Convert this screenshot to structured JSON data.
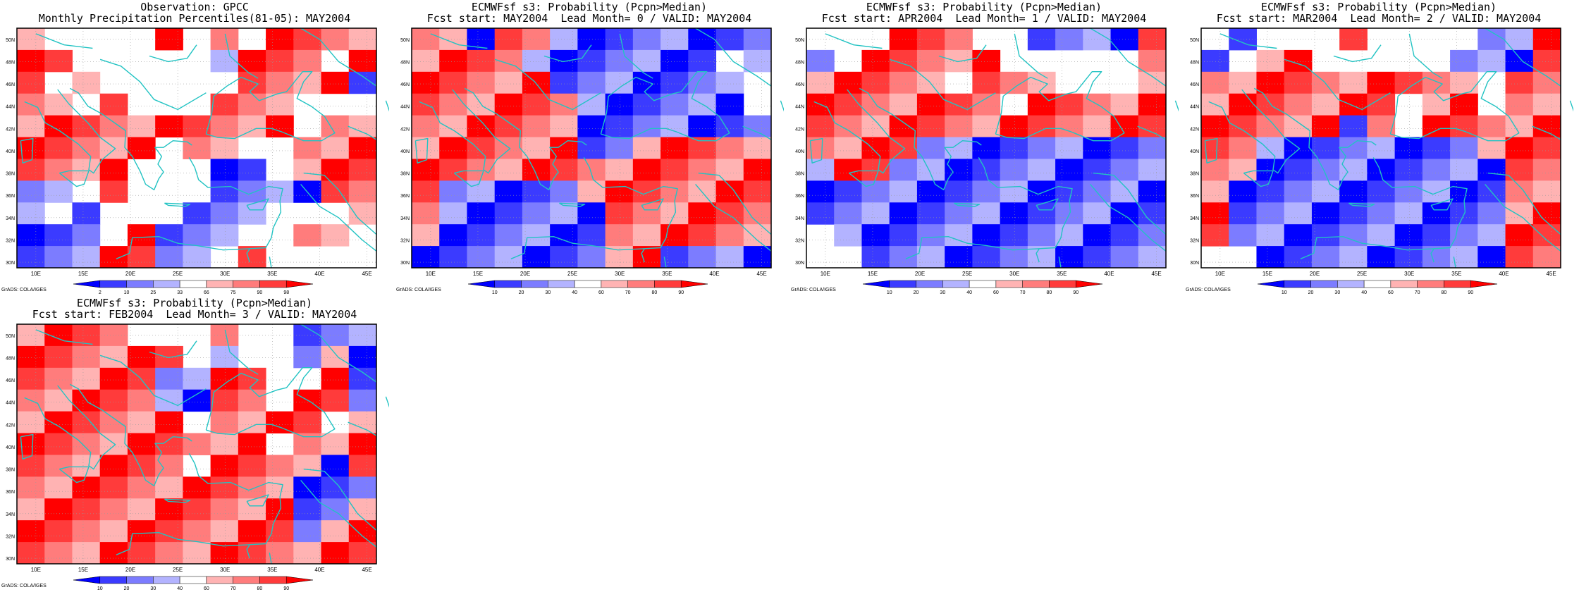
{
  "grads_label": "GrADS: COLA/IGES",
  "coast_color": "#22c3c3",
  "x_ticks": [
    "10E",
    "15E",
    "20E",
    "25E",
    "30E",
    "35E",
    "40E",
    "45E"
  ],
  "y_ticks": [
    "30N",
    "32N",
    "34N",
    "36N",
    "38N",
    "40N",
    "42N",
    "44N",
    "46N",
    "48N",
    "50N"
  ],
  "colorbars": {
    "percentile": {
      "labels": [
        "2",
        "10",
        "25",
        "33",
        "66",
        "75",
        "90",
        "98"
      ],
      "colors": [
        "#0000ff",
        "#3b3bff",
        "#7c7cff",
        "#b3b3ff",
        "#ffffff",
        "#ffb3b3",
        "#ff7c7c",
        "#ff3b3b",
        "#ff0000"
      ]
    },
    "probability": {
      "labels": [
        "10",
        "20",
        "30",
        "40",
        "60",
        "70",
        "80",
        "90"
      ],
      "colors": [
        "#0000ff",
        "#3b3bff",
        "#7c7cff",
        "#b3b3ff",
        "#ffffff",
        "#ffb3b3",
        "#ff7c7c",
        "#ff3b3b",
        "#ff0000"
      ]
    }
  },
  "panels": [
    {
      "title_line1": "Observation: GPCC",
      "title_line2": "Monthly Precipitation Percentiles(81-05): MAY2004",
      "scale": "percentile",
      "grid": [
        "R0000R0R0RRRR",
        "RR00000BRRR0R",
        "R0R00000RRRRB",
        "RR0R000RRR000",
        "RRRRRRRRRR0RR",
        "RRRRR0RR00RRR",
        "RRRR000BB0RRR",
        "BB0R000BBBBRR",
        "B0B000BBB000R",
        "BBB0RBBB00RR0",
        "BBBRRBB0R0000"
      ]
    },
    {
      "title_line1": "ECMWFsf s3: Probability (Pcpn>Median)",
      "title_line2": "Fcst start: MAY2004  Lead Month= 0 / VALID: MAY2004",
      "scale": "probability",
      "grid": [
        "RRBRRBBBBBBBB",
        "RRRRBBBBBBB0B",
        "RRRRRBBBBBBB0",
        "RRRRRRBBBBBB0",
        "RRRRRRBBBBBBB",
        "RRRRRRBBRRRRR",
        "RRRRRRRRRRRRR",
        "RBBBBBRRRRRRR",
        "RBBBBBBRRRRRR",
        "RBBBBBBRRRRRR",
        "BBBBBBBRRBBBB"
      ]
    },
    {
      "title_line1": "ECMWFsf s3: Probability (Pcpn>Median)",
      "title_line2": "Fcst start: APR2004  Lead Month= 1 / VALID: MAY2004",
      "scale": "probability",
      "grid": [
        "000RRR00BBBBR",
        "B0RRRRR00000R",
        "RRRRR0RRR000R",
        "RRRRRRR0RRRRR",
        "RRRRRRRRRRRRR",
        "RRRRBBBBBBBBB",
        "BRRBBBBBBBBBB",
        "BBBBBBBBBBBBB",
        "BBBBBBBBBBBBB",
        "0BBBBBBBBBBBB",
        "00BBBBBBBBBBB"
      ]
    },
    {
      "title_line1": "ECMWFsf s3: Probability (Pcpn>Median)",
      "title_line2": "Fcst start: MAR2004  Lead Month= 2 / VALID: MAY2004",
      "scale": "probability",
      "grid": [
        "0B000R0000BBR",
        "B0RR00000BBBR",
        "RRRRRRRRRR0RR",
        "RRRRRRR0RR0RR",
        "RRRRRBR0RRRRR",
        "RRBBBBBBBBRRR",
        "RRBBBBBBBBBRR",
        "RBBBBBBBBBBRR",
        "RBBBBBBBBBBRR",
        "RBBBBBBBBBBRR",
        "00BBBBBBBBBRR"
      ]
    },
    {
      "title_line1": "ECMWFsf s3: Probability (Pcpn>Median)",
      "title_line2": "Fcst start: FEB2004  Lead Month= 3 / VALID: MAY2004",
      "scale": "probability",
      "grid": [
        "RRRR000R00BBB",
        "RRRRRR0B00BRB",
        "RRRRRBBRR00RB",
        "RRRRRBBRR0RRB",
        "RRRRRR0RRRR0R",
        "RRRRRRRRR0RRR",
        "RRRRRR0RRRRBR",
        "RRRRRRRRRRBBB",
        "RRRRRRRRRRBBR",
        "RRRRRRRRRRBRR",
        "RRRRRRRRRRRRR"
      ]
    }
  ]
}
